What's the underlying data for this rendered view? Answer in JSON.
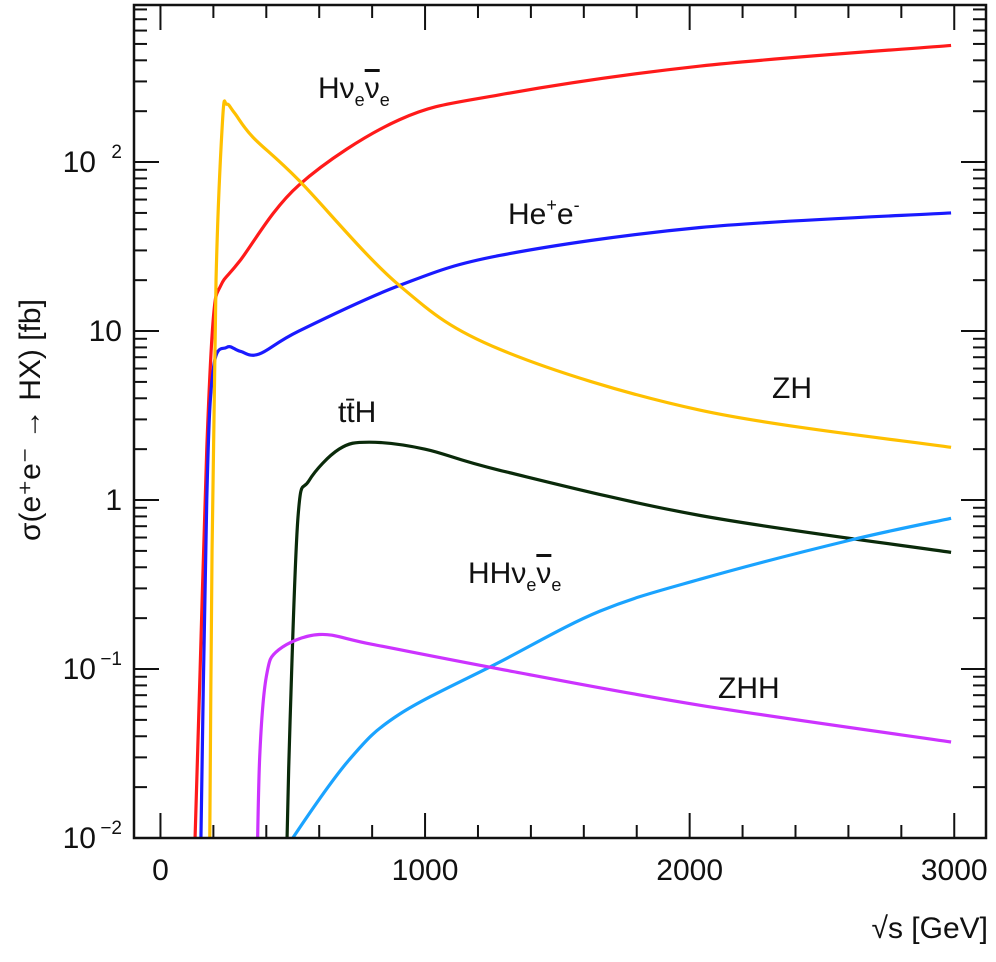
{
  "chart_data": {
    "type": "line",
    "title": "",
    "xlabel": "√s [GeV]",
    "ylabel": "σ(e⁺e⁻ → HX) [fb]",
    "xlim": [
      -100,
      3120
    ],
    "ylim": [
      0.01,
      850
    ],
    "yscale": "log",
    "grid": false,
    "x_ticks": [
      {
        "value": 0,
        "label": "0"
      },
      {
        "value": 1000,
        "label": "1000"
      },
      {
        "value": 2000,
        "label": "2000"
      },
      {
        "value": 3000,
        "label": "3000"
      }
    ],
    "y_ticks": [
      {
        "value": 0.01,
        "base": "10",
        "exp": "−2"
      },
      {
        "value": 0.1,
        "base": "10",
        "exp": "−1"
      },
      {
        "value": 1,
        "base": "1",
        "exp": ""
      },
      {
        "value": 10,
        "base": "10",
        "exp": ""
      },
      {
        "value": 100,
        "base": "10",
        "exp": "2"
      }
    ],
    "series": [
      {
        "name": "Hν̄ₑνₑ",
        "label_main": "Hν",
        "label_sub1": "e",
        "label_bar": "ν",
        "label_sub2": "e",
        "color": "#ff1a1a",
        "x": [
          125,
          150,
          175,
          200,
          228,
          300,
          523,
          903,
          1282,
          2040,
          2988
        ],
        "y": [
          0.005,
          0.1,
          2,
          12,
          18.6,
          26,
          73,
          178,
          250,
          370,
          490
        ]
      },
      {
        "name": "He⁺e⁻",
        "label_main": "He",
        "label_sup1": "+",
        "label_mid": "e",
        "label_sup2": "-",
        "color": "#1a1aff",
        "x": [
          150,
          175,
          200,
          250,
          300,
          372,
          523,
          903,
          1282,
          2040,
          2988
        ],
        "y": [
          0.005,
          1,
          6,
          8,
          7.6,
          7.3,
          10,
          18.6,
          28,
          41,
          50
        ]
      },
      {
        "name": "ZH",
        "label_main": "ZH",
        "color": "#ffc000",
        "x": [
          185,
          195,
          210,
          235,
          250,
          280,
          350,
          523,
          903,
          1282,
          2040,
          2988
        ],
        "y": [
          0.005,
          0.5,
          20,
          180,
          220,
          195,
          140,
          78,
          18.6,
          7.8,
          3.4,
          2.05
        ]
      },
      {
        "name": "tt̄H",
        "label_main": "tt̄H",
        "color": "#0a2a0a",
        "x": [
          474,
          490,
          520,
          561,
          675,
          789,
          1000,
          1282,
          2040,
          2988
        ],
        "y": [
          0.005,
          0.05,
          0.8,
          1.3,
          2.0,
          2.2,
          2.0,
          1.5,
          0.81,
          0.49
        ]
      },
      {
        "name": "HHν̄ₑνₑ",
        "label_main": "HHν",
        "label_sub1": "e",
        "label_bar": "ν",
        "label_sub2": "e",
        "color": "#1aa3ff",
        "x": [
          474,
          500,
          713,
          903,
          1282,
          1661,
          2040,
          2609,
          2988
        ],
        "y": [
          0.008,
          0.01,
          0.029,
          0.054,
          0.11,
          0.22,
          0.34,
          0.58,
          0.78
        ]
      },
      {
        "name": "ZHH",
        "label_main": "ZHH",
        "color": "#cc33ff",
        "x": [
          364,
          375,
          400,
          447,
          600,
          800,
          1282,
          2040,
          2988
        ],
        "y": [
          0.005,
          0.03,
          0.09,
          0.13,
          0.16,
          0.14,
          0.1,
          0.061,
          0.037
        ]
      }
    ]
  }
}
